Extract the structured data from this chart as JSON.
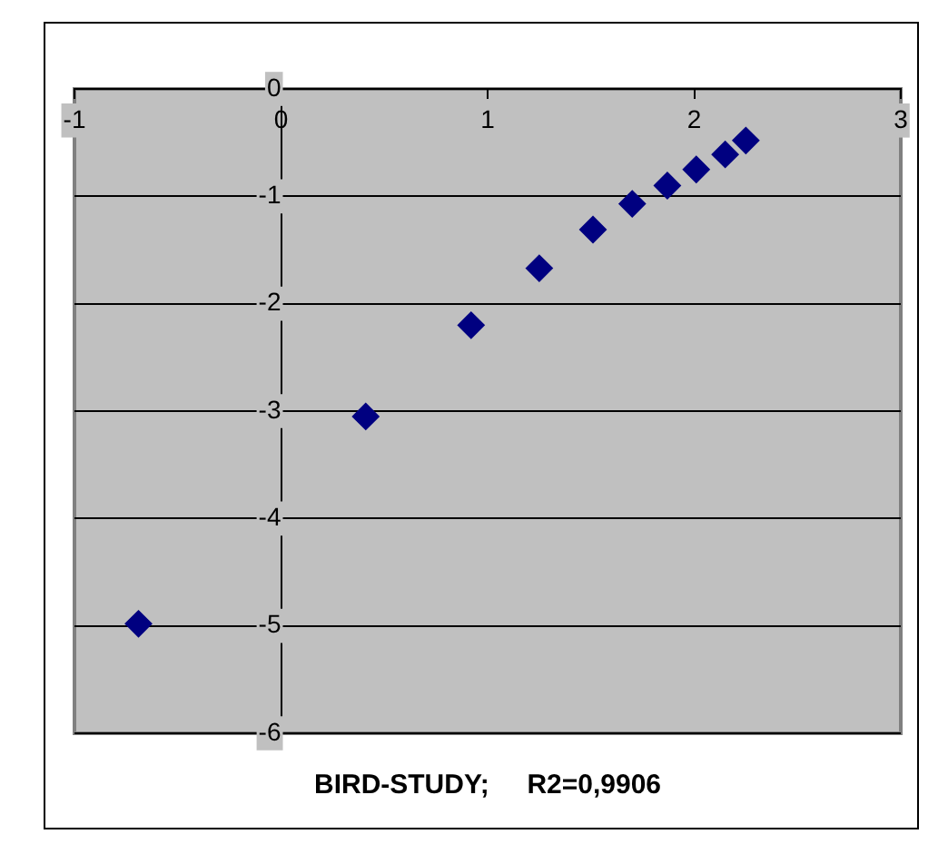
{
  "chart_data": {
    "type": "scatter",
    "title": "BIRD-STUDY;     R2=0,9906",
    "x": [
      -0.69,
      0.41,
      0.92,
      1.25,
      1.51,
      1.7,
      1.87,
      2.01,
      2.15,
      2.25
    ],
    "series": [
      {
        "color": "#000080",
        "values": [
          -4.98,
          -3.05,
          -2.2,
          -1.67,
          -1.31,
          -1.07,
          -0.9,
          -0.75,
          -0.61,
          -0.48
        ]
      }
    ],
    "xlim": [
      -1,
      3
    ],
    "xticks": [
      -1,
      0,
      1,
      2,
      3
    ],
    "ylim": [
      -6,
      0
    ],
    "yticks": [
      -6,
      -5,
      -4,
      -3,
      -2,
      -1,
      0
    ],
    "grid": "y",
    "legend": false,
    "marker": "diamond"
  }
}
